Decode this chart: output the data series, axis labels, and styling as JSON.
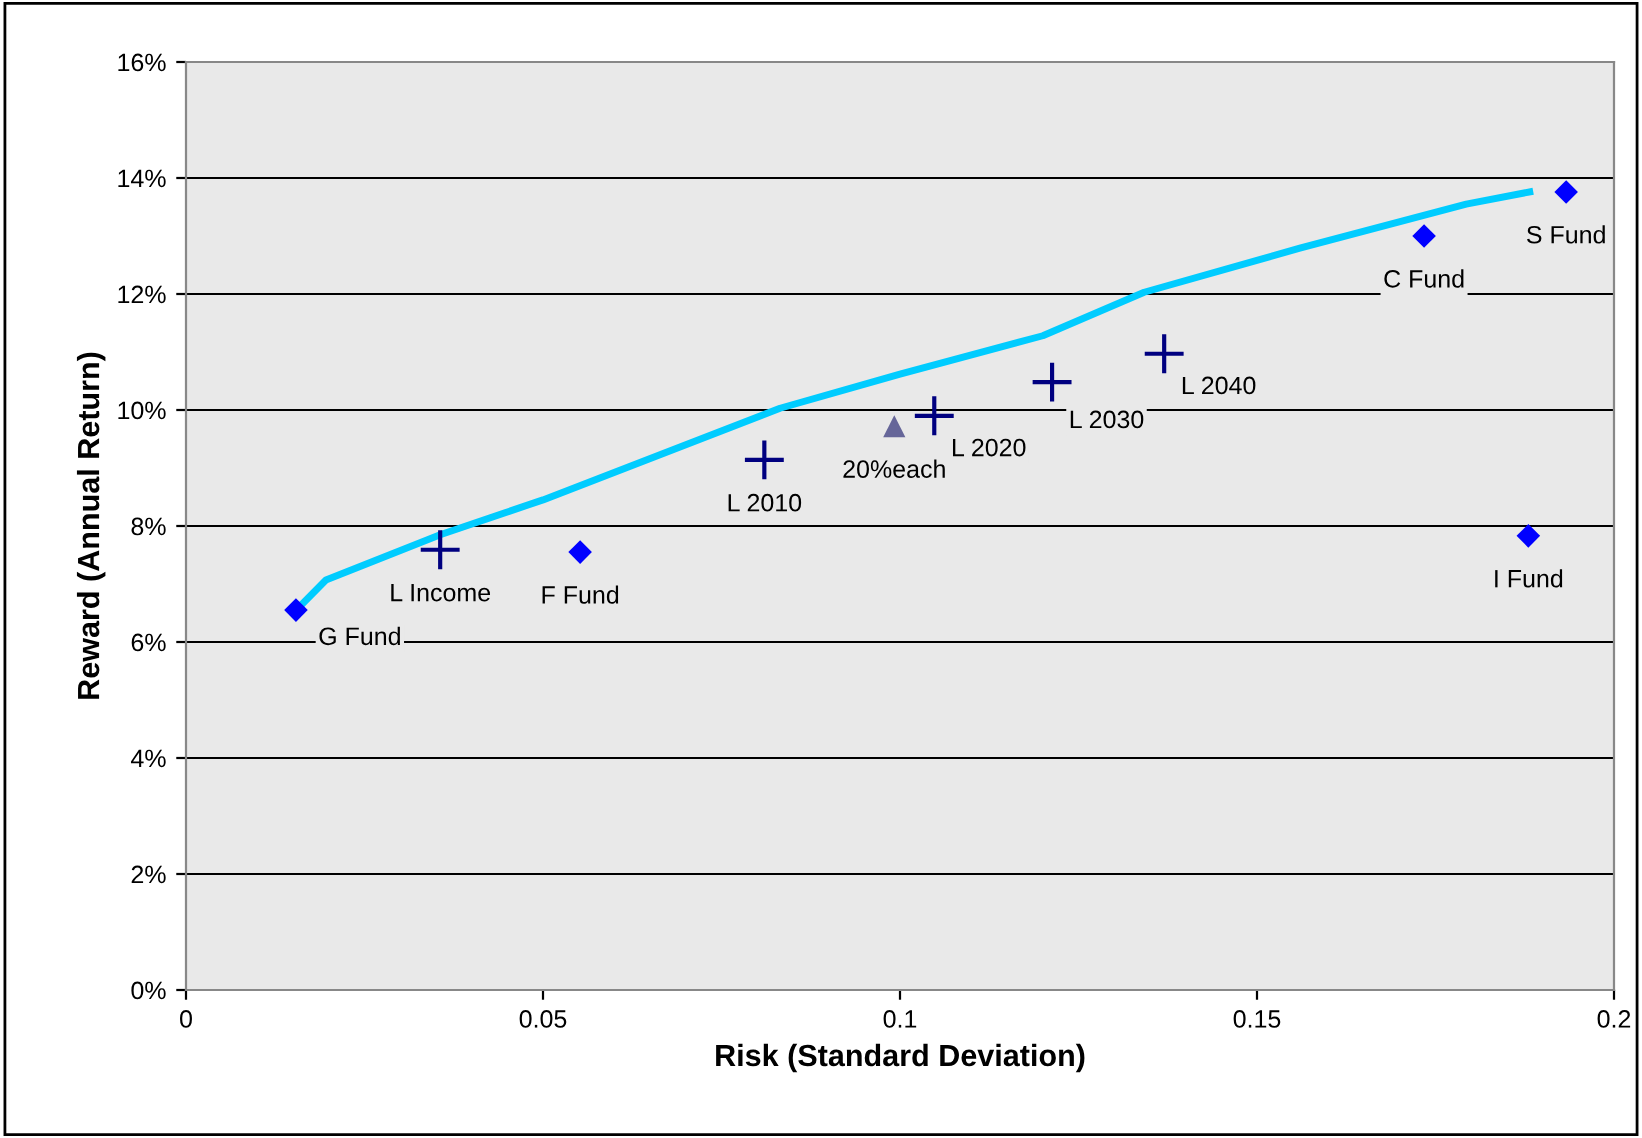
{
  "chart_data": {
    "type": "scatter",
    "xlabel": "Risk (Standard Deviation)",
    "ylabel": "Reward (Annual Return)",
    "xlim": [
      0,
      0.2
    ],
    "xticks": [
      0,
      0.05,
      0.1,
      0.15,
      0.2
    ],
    "ylim": [
      0,
      16
    ],
    "yticks": [
      {
        "value": 0,
        "label": "0%"
      },
      {
        "value": 2,
        "label": "2%"
      },
      {
        "value": 4,
        "label": "4%"
      },
      {
        "value": 6,
        "label": "6%"
      },
      {
        "value": 8,
        "label": "8%"
      },
      {
        "value": 10,
        "label": "10%"
      },
      {
        "value": 12,
        "label": "12%"
      },
      {
        "value": 14,
        "label": "14%"
      },
      {
        "value": 16,
        "label": "16%"
      }
    ],
    "grid": "y",
    "legend": false,
    "series": [
      {
        "type": "line",
        "color": "#00ccff",
        "marker": "none",
        "line_style": "solid",
        "x": [
          0.016,
          0.0196,
          0.0356,
          0.05,
          0.0832,
          0.1,
          0.12,
          0.1342,
          0.156,
          0.1793,
          0.1882
        ],
        "values": [
          6.62,
          7.07,
          7.85,
          8.45,
          10.03,
          10.62,
          11.28,
          12.03,
          12.79,
          13.55,
          13.76
        ]
      },
      {
        "color": "#0000ff",
        "marker": "diamond",
        "x": [
          0.0154,
          0.0552,
          0.1734,
          0.1933,
          0.188
        ],
        "values": [
          6.55,
          7.55,
          13.0,
          13.76,
          7.83
        ]
      },
      {
        "color": "#000080",
        "marker": "cross",
        "x": [
          0.0356,
          0.081,
          0.1048,
          0.1213,
          0.137
        ],
        "values": [
          7.59,
          9.14,
          9.9,
          10.48,
          10.97
        ]
      },
      {
        "color": "#666699",
        "marker": "triangle",
        "x": [
          0.0992
        ],
        "values": [
          9.72
        ]
      }
    ],
    "annotations": [
      {
        "text": "G Fund",
        "x": 0.0154,
        "y": 6.55
      },
      {
        "text": "L Income",
        "x": 0.0356,
        "y": 7.59
      },
      {
        "text": "F Fund",
        "x": 0.0552,
        "y": 7.55
      },
      {
        "text": "L 2010",
        "x": 0.081,
        "y": 9.14
      },
      {
        "text": "20%each",
        "x": 0.0992,
        "y": 9.72
      },
      {
        "text": "L 2020",
        "x": 0.1048,
        "y": 9.9
      },
      {
        "text": "L 2030",
        "x": 0.1213,
        "y": 10.48
      },
      {
        "text": "L 2040",
        "x": 0.137,
        "y": 10.97
      },
      {
        "text": "C Fund",
        "x": 0.1734,
        "y": 13.0
      },
      {
        "text": "S Fund",
        "x": 0.1933,
        "y": 13.76
      },
      {
        "text": "I Fund",
        "x": 0.188,
        "y": 7.83
      }
    ]
  }
}
